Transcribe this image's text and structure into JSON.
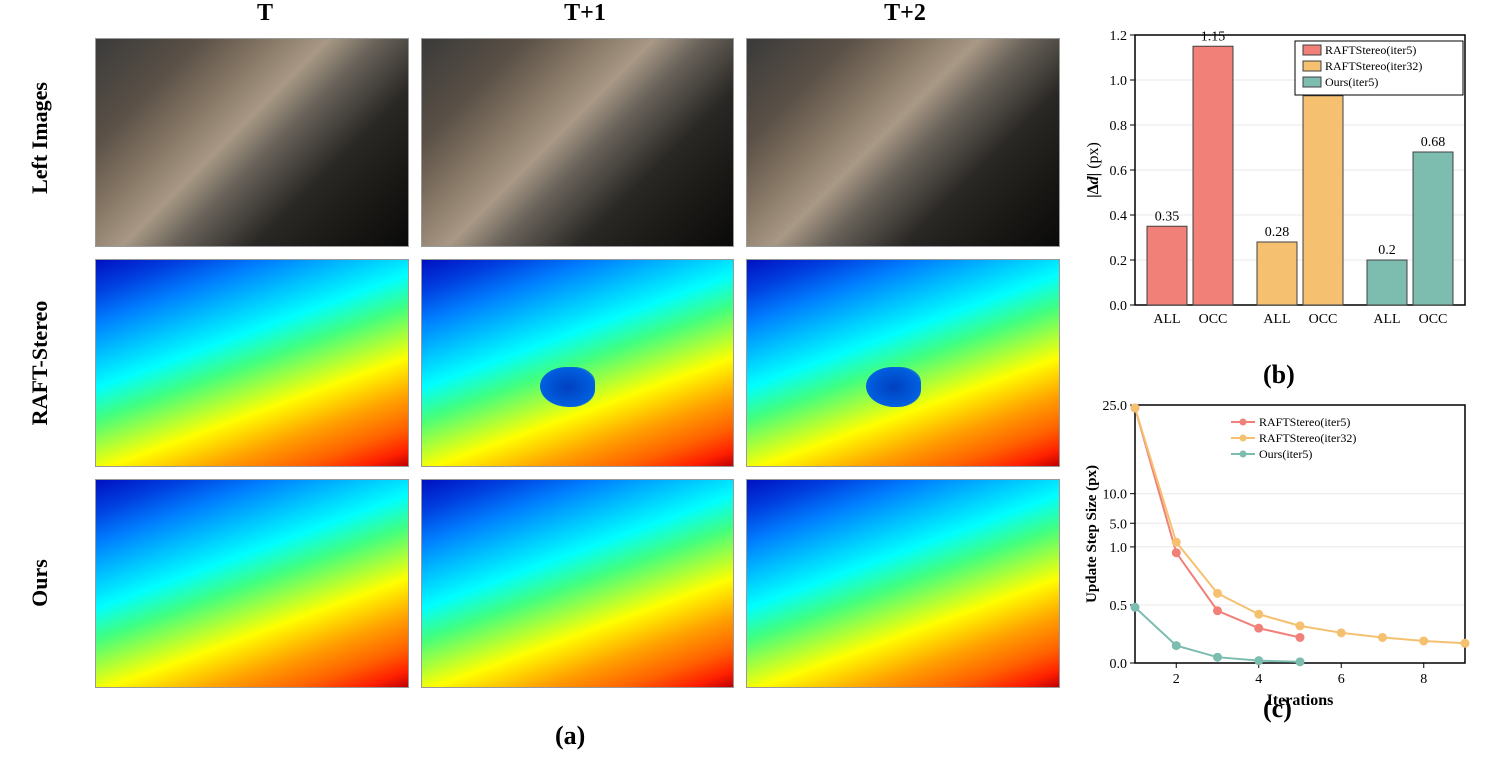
{
  "columns": [
    "T",
    "T+1",
    "T+2"
  ],
  "rows": [
    "Left Images",
    "RAFT-Stereo",
    "Ours"
  ],
  "panel_labels": {
    "a": "(a)",
    "b": "(b)",
    "c": "(c)"
  },
  "bar_chart": {
    "type": "bar",
    "ylabel": "|Δd| (px)",
    "ylim": [
      0.0,
      1.2
    ],
    "yticks": [
      0.0,
      0.2,
      0.4,
      0.6,
      0.8,
      1.0,
      1.2
    ],
    "categories": [
      "ALL",
      "OCC"
    ],
    "series": [
      {
        "name": "RAFTStereo(iter5)",
        "color": "#f08078",
        "values": [
          0.35,
          1.15
        ]
      },
      {
        "name": "RAFTStereo(iter32)",
        "color": "#f5c070",
        "values": [
          0.28,
          0.93
        ]
      },
      {
        "name": "Ours(iter5)",
        "color": "#7cbdb0",
        "values": [
          0.2,
          0.68
        ]
      }
    ],
    "legend_border": "#000000",
    "grid_color": "#e8e8e8",
    "axis_color": "#000000",
    "bar_edge": "#404040",
    "background": "#ffffff",
    "label_fontsize": 16,
    "tick_fontsize": 14,
    "value_fontsize": 14,
    "legend_fontsize": 12
  },
  "line_chart": {
    "type": "line",
    "xlabel": "Iterations",
    "ylabel": "Update Step Size (px)",
    "xlim": [
      1,
      9
    ],
    "xticks": [
      2,
      4,
      6,
      8
    ],
    "yticks": [
      0.0,
      0.5,
      1.0,
      5.0,
      10.0,
      25.0
    ],
    "y_scale": "broken",
    "series": [
      {
        "name": "RAFTStereo(iter5)",
        "color": "#f08078",
        "marker": "circle",
        "x": [
          1,
          2,
          3,
          4,
          5
        ],
        "y": [
          24.5,
          0.95,
          0.45,
          0.3,
          0.22
        ]
      },
      {
        "name": "RAFTStereo(iter32)",
        "color": "#f5c070",
        "marker": "circle",
        "x": [
          1,
          2,
          3,
          4,
          5,
          6,
          7,
          8,
          9
        ],
        "y": [
          24.5,
          1.8,
          0.6,
          0.42,
          0.32,
          0.26,
          0.22,
          0.19,
          0.17
        ]
      },
      {
        "name": "Ours(iter5)",
        "color": "#7cbdb0",
        "marker": "circle",
        "x": [
          1,
          2,
          3,
          4,
          5
        ],
        "y": [
          0.48,
          0.15,
          0.05,
          0.02,
          0.01
        ]
      }
    ],
    "grid_color": "#e8e8e8",
    "axis_color": "#000000",
    "background": "#ffffff",
    "line_width": 2,
    "marker_size": 4,
    "label_fontsize": 16,
    "tick_fontsize": 14,
    "legend_fontsize": 12
  }
}
